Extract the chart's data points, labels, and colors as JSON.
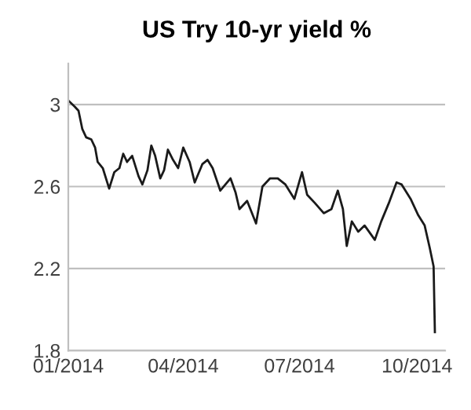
{
  "chart_data": {
    "type": "line",
    "title": "US Try 10-yr yield %",
    "x": [
      "2014-01-01",
      "2014-01-06",
      "2014-01-09",
      "2014-01-12",
      "2014-01-15",
      "2014-01-19",
      "2014-01-22",
      "2014-01-24",
      "2014-01-28",
      "2014-02-02",
      "2014-02-06",
      "2014-02-10",
      "2014-02-13",
      "2014-02-16",
      "2014-02-20",
      "2014-02-25",
      "2014-02-28",
      "2014-03-04",
      "2014-03-07",
      "2014-03-10",
      "2014-03-14",
      "2014-03-17",
      "2014-03-20",
      "2014-03-24",
      "2014-03-28",
      "2014-04-01",
      "2014-04-06",
      "2014-04-10",
      "2014-04-16",
      "2014-04-20",
      "2014-04-24",
      "2014-04-30",
      "2014-05-08",
      "2014-05-12",
      "2014-05-15",
      "2014-05-21",
      "2014-05-28",
      "2014-06-02",
      "2014-06-08",
      "2014-06-14",
      "2014-06-20",
      "2014-06-27",
      "2014-07-03",
      "2014-07-07",
      "2014-07-13",
      "2014-07-20",
      "2014-07-26",
      "2014-07-31",
      "2014-08-04",
      "2014-08-07",
      "2014-08-11",
      "2014-08-16",
      "2014-08-21",
      "2014-08-29",
      "2014-09-03",
      "2014-09-09",
      "2014-09-15",
      "2014-09-19",
      "2014-09-26",
      "2014-10-02",
      "2014-10-07",
      "2014-10-11",
      "2014-10-14",
      "2014-10-15"
    ],
    "series": [
      {
        "color": "#1a1a1a",
        "values": [
          3.02,
          2.99,
          2.97,
          2.88,
          2.84,
          2.83,
          2.79,
          2.72,
          2.69,
          2.59,
          2.67,
          2.69,
          2.76,
          2.72,
          2.75,
          2.65,
          2.61,
          2.68,
          2.8,
          2.75,
          2.64,
          2.68,
          2.78,
          2.73,
          2.69,
          2.79,
          2.72,
          2.62,
          2.71,
          2.73,
          2.69,
          2.58,
          2.64,
          2.57,
          2.49,
          2.53,
          2.42,
          2.6,
          2.64,
          2.64,
          2.61,
          2.54,
          2.67,
          2.56,
          2.52,
          2.47,
          2.49,
          2.58,
          2.49,
          2.31,
          2.43,
          2.38,
          2.41,
          2.34,
          2.43,
          2.52,
          2.62,
          2.61,
          2.54,
          2.46,
          2.41,
          2.3,
          2.21,
          1.89
        ]
      }
    ],
    "xlim": [
      "2014-01-01",
      "2014-10-23"
    ],
    "xticks": [
      {
        "value": "2014-01-01",
        "label": "01/2014"
      },
      {
        "value": "2014-04-01",
        "label": "04/2014"
      },
      {
        "value": "2014-07-01",
        "label": "07/2014"
      },
      {
        "value": "2014-10-01",
        "label": "10/2014"
      }
    ],
    "ylim": [
      1.8,
      3.2
    ],
    "yticks": [
      1.8,
      2.2,
      2.6,
      {
        "value": 3.0,
        "label": "3"
      }
    ],
    "grid": "y",
    "line_style": "solid"
  }
}
